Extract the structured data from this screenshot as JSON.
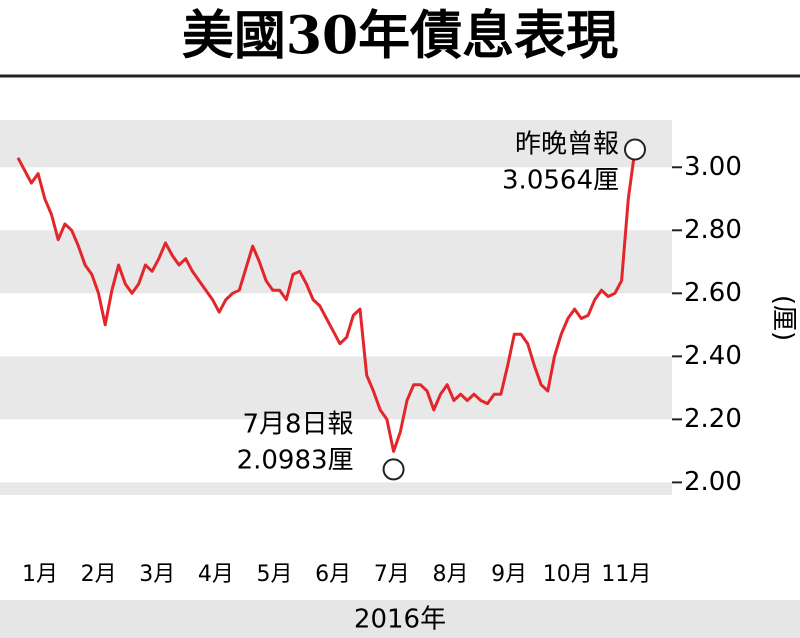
{
  "chart_data": {
    "type": "line",
    "title": "美國30年債息表現",
    "y_label": "(厘)",
    "x_label": "2016年",
    "months": [
      "1月",
      "2月",
      "3月",
      "4月",
      "5月",
      "6月",
      "7月",
      "8月",
      "9月",
      "10月",
      "11月"
    ],
    "series": [
      {
        "name": "美國30年債息",
        "color": "#e3262b",
        "values": [
          3.03,
          2.99,
          2.95,
          2.98,
          2.9,
          2.85,
          2.77,
          2.82,
          2.8,
          2.75,
          2.69,
          2.66,
          2.6,
          2.5,
          2.61,
          2.69,
          2.63,
          2.6,
          2.63,
          2.69,
          2.67,
          2.71,
          2.76,
          2.72,
          2.69,
          2.71,
          2.67,
          2.64,
          2.61,
          2.58,
          2.54,
          2.58,
          2.6,
          2.61,
          2.68,
          2.75,
          2.7,
          2.64,
          2.61,
          2.61,
          2.58,
          2.66,
          2.67,
          2.63,
          2.58,
          2.56,
          2.52,
          2.48,
          2.44,
          2.46,
          2.53,
          2.55,
          2.34,
          2.29,
          2.23,
          2.2,
          2.0983,
          2.16,
          2.26,
          2.31,
          2.31,
          2.29,
          2.23,
          2.28,
          2.31,
          2.26,
          2.28,
          2.26,
          2.28,
          2.26,
          2.25,
          2.28,
          2.28,
          2.37,
          2.47,
          2.47,
          2.44,
          2.37,
          2.31,
          2.29,
          2.4,
          2.47,
          2.52,
          2.55,
          2.52,
          2.53,
          2.58,
          2.61,
          2.59,
          2.6,
          2.64,
          2.9,
          3.0564
        ]
      }
    ],
    "annotations": [
      {
        "lines": [
          "昨晚曾報",
          "3.0564厘"
        ],
        "index": 92
      },
      {
        "lines": [
          "7月8日報",
          "2.0983厘"
        ],
        "index": 56
      }
    ],
    "ylim": [
      1.96,
      3.15
    ],
    "yticks": [
      {
        "value": 2,
        "label": "2.00"
      },
      {
        "value": 2.2,
        "label": "2.20"
      },
      {
        "value": 2.4,
        "label": "2.40"
      },
      {
        "value": 2.6,
        "label": "2.60"
      },
      {
        "value": 2.8,
        "label": "2.80"
      },
      {
        "value": 3,
        "label": "3.00"
      }
    ]
  }
}
